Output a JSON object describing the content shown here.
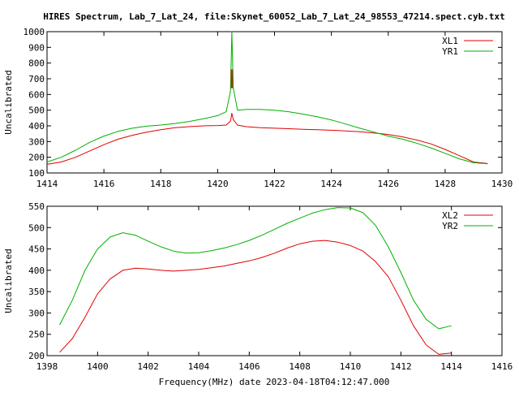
{
  "title": "HIRES Spectrum, Lab_7_Lat_24, file:Skynet_60052_Lab_7_Lat_24_98553_47214.spect.cyb.txt",
  "xlabel_bottom": "Frequency(MHz) date 2023-04-18T04:12:47.000",
  "colors": {
    "red": "#e00000",
    "green": "#00b000",
    "spike": "#8b4513"
  },
  "chart_data": [
    {
      "type": "line",
      "xlabel": "",
      "ylabel": "Uncalibrated",
      "xlim": [
        1414,
        1430
      ],
      "ylim": [
        100,
        1000
      ],
      "xticks": [
        1414,
        1416,
        1418,
        1420,
        1422,
        1424,
        1426,
        1428,
        1430
      ],
      "yticks": [
        100,
        200,
        300,
        400,
        500,
        600,
        700,
        800,
        900,
        1000
      ],
      "legend_position": "top-right",
      "series": [
        {
          "name": "XL1",
          "color": "#e00000",
          "x": [
            1414.0,
            1414.5,
            1415.0,
            1415.5,
            1416.0,
            1416.5,
            1417.0,
            1417.5,
            1418.0,
            1418.5,
            1419.0,
            1419.5,
            1420.0,
            1420.3,
            1420.45,
            1420.5,
            1420.55,
            1420.7,
            1421.0,
            1421.5,
            1422.0,
            1422.5,
            1423.0,
            1423.5,
            1424.0,
            1424.5,
            1425.0,
            1425.5,
            1426.0,
            1426.5,
            1427.0,
            1427.5,
            1428.0,
            1428.5,
            1429.0,
            1429.5
          ],
          "y": [
            155,
            170,
            200,
            240,
            280,
            315,
            340,
            360,
            375,
            388,
            395,
            400,
            402,
            405,
            430,
            480,
            440,
            405,
            395,
            388,
            385,
            382,
            378,
            375,
            372,
            368,
            362,
            355,
            345,
            330,
            310,
            285,
            250,
            210,
            170,
            160
          ]
        },
        {
          "name": "YR1",
          "color": "#00b000",
          "x": [
            1414.0,
            1414.5,
            1415.0,
            1415.5,
            1416.0,
            1416.5,
            1417.0,
            1417.5,
            1418.0,
            1418.5,
            1419.0,
            1419.5,
            1420.0,
            1420.3,
            1420.45,
            1420.5,
            1420.55,
            1420.7,
            1421.0,
            1421.5,
            1422.0,
            1422.5,
            1423.0,
            1423.5,
            1424.0,
            1424.5,
            1425.0,
            1425.5,
            1426.0,
            1426.5,
            1427.0,
            1427.5,
            1428.0,
            1428.5,
            1429.0,
            1429.5
          ],
          "y": [
            170,
            200,
            245,
            295,
            335,
            365,
            385,
            398,
            405,
            415,
            428,
            445,
            465,
            490,
            620,
            1000,
            640,
            500,
            505,
            505,
            500,
            490,
            475,
            458,
            438,
            412,
            385,
            360,
            335,
            315,
            290,
            260,
            225,
            190,
            165,
            158
          ]
        }
      ]
    },
    {
      "type": "line",
      "xlabel": "Frequency(MHz) date 2023-04-18T04:12:47.000",
      "ylabel": "Uncalibrated",
      "xlim": [
        1398,
        1416
      ],
      "ylim": [
        200,
        550
      ],
      "xticks": [
        1398,
        1400,
        1402,
        1404,
        1406,
        1408,
        1410,
        1412,
        1414,
        1416
      ],
      "yticks": [
        200,
        250,
        300,
        350,
        400,
        450,
        500,
        550
      ],
      "legend_position": "top-right",
      "series": [
        {
          "name": "XL2",
          "color": "#e00000",
          "x": [
            1398.5,
            1399.0,
            1399.5,
            1400.0,
            1400.5,
            1401.0,
            1401.5,
            1402.0,
            1402.5,
            1403.0,
            1403.5,
            1404.0,
            1404.5,
            1405.0,
            1405.5,
            1406.0,
            1406.5,
            1407.0,
            1407.5,
            1408.0,
            1408.5,
            1409.0,
            1409.5,
            1410.0,
            1410.5,
            1411.0,
            1411.5,
            1412.0,
            1412.5,
            1413.0,
            1413.5,
            1414.0
          ],
          "y": [
            208,
            240,
            290,
            345,
            380,
            400,
            405,
            403,
            400,
            398,
            400,
            402,
            406,
            410,
            416,
            422,
            430,
            440,
            452,
            462,
            468,
            470,
            466,
            458,
            445,
            420,
            385,
            330,
            270,
            225,
            203,
            206
          ]
        },
        {
          "name": "YR2",
          "color": "#00b000",
          "x": [
            1398.5,
            1399.0,
            1399.5,
            1400.0,
            1400.5,
            1401.0,
            1401.5,
            1402.0,
            1402.5,
            1403.0,
            1403.5,
            1404.0,
            1404.5,
            1405.0,
            1405.5,
            1406.0,
            1406.5,
            1407.0,
            1407.5,
            1408.0,
            1408.5,
            1409.0,
            1409.5,
            1410.0,
            1410.5,
            1411.0,
            1411.5,
            1412.0,
            1412.5,
            1413.0,
            1413.5,
            1414.0
          ],
          "y": [
            272,
            330,
            400,
            450,
            478,
            488,
            482,
            468,
            455,
            445,
            440,
            441,
            446,
            452,
            460,
            470,
            482,
            496,
            510,
            522,
            534,
            542,
            547,
            546,
            535,
            505,
            455,
            395,
            330,
            285,
            263,
            270
          ]
        }
      ]
    }
  ]
}
